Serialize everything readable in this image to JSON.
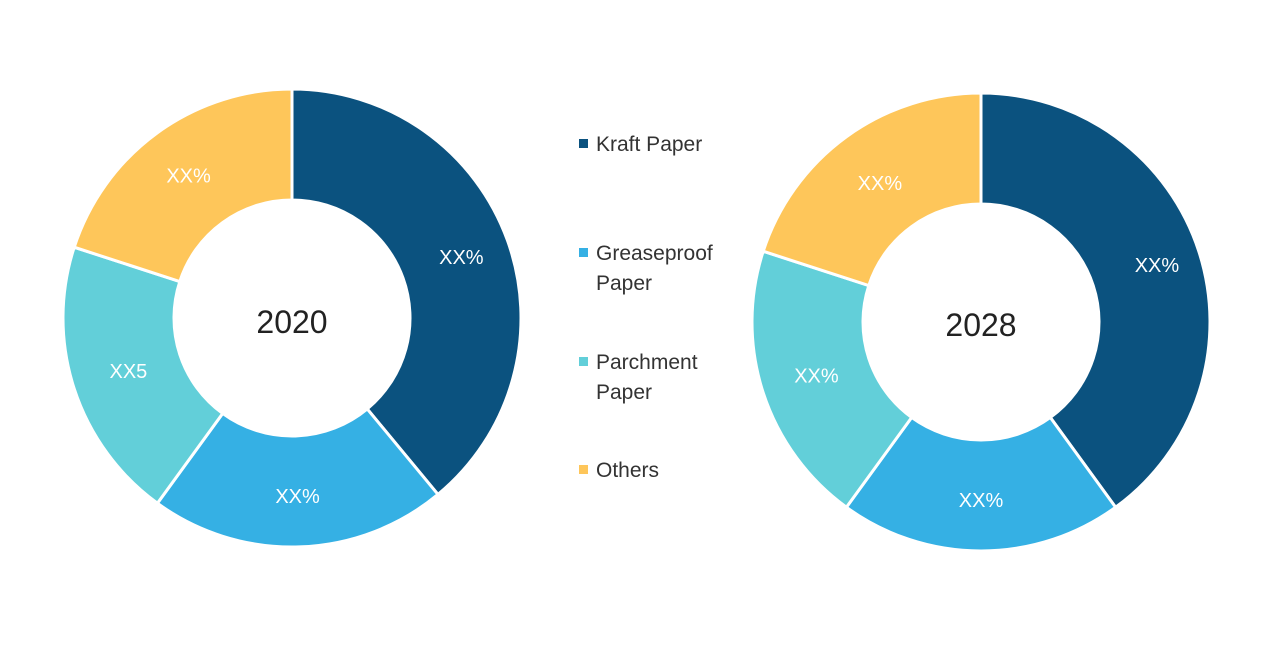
{
  "chart_data": {
    "type": "pie",
    "legend": {
      "placement": "center",
      "entries": [
        {
          "name": "Kraft Paper",
          "lines": [
            "Kraft Paper"
          ],
          "color": "#0b527f"
        },
        {
          "name": "Greaseproof Paper",
          "lines": [
            "Greaseproof",
            "Paper"
          ],
          "color": "#35b0e4"
        },
        {
          "name": "Parchment Paper",
          "lines": [
            "Parchment",
            "Paper"
          ],
          "color": "#62cfd9"
        },
        {
          "name": "Others",
          "lines": [
            "Others"
          ],
          "color": "#fec65a"
        }
      ]
    },
    "charts": [
      {
        "center_label": "2020",
        "slices": [
          {
            "category": "Kraft Paper",
            "share": 0.39,
            "label": "XX%"
          },
          {
            "category": "Greaseproof Paper",
            "share": 0.21,
            "label": "XX%"
          },
          {
            "category": "Parchment Paper",
            "share": 0.2,
            "label": "XX5"
          },
          {
            "category": "Others",
            "share": 0.2,
            "label": "XX%"
          }
        ]
      },
      {
        "center_label": "2028",
        "slices": [
          {
            "category": "Kraft Paper",
            "share": 0.4,
            "label": "XX%"
          },
          {
            "category": "Greaseproof Paper",
            "share": 0.2,
            "label": "XX%"
          },
          {
            "category": "Parchment Paper",
            "share": 0.2,
            "label": "XX%"
          },
          {
            "category": "Others",
            "share": 0.2,
            "label": "XX%"
          }
        ]
      }
    ]
  }
}
